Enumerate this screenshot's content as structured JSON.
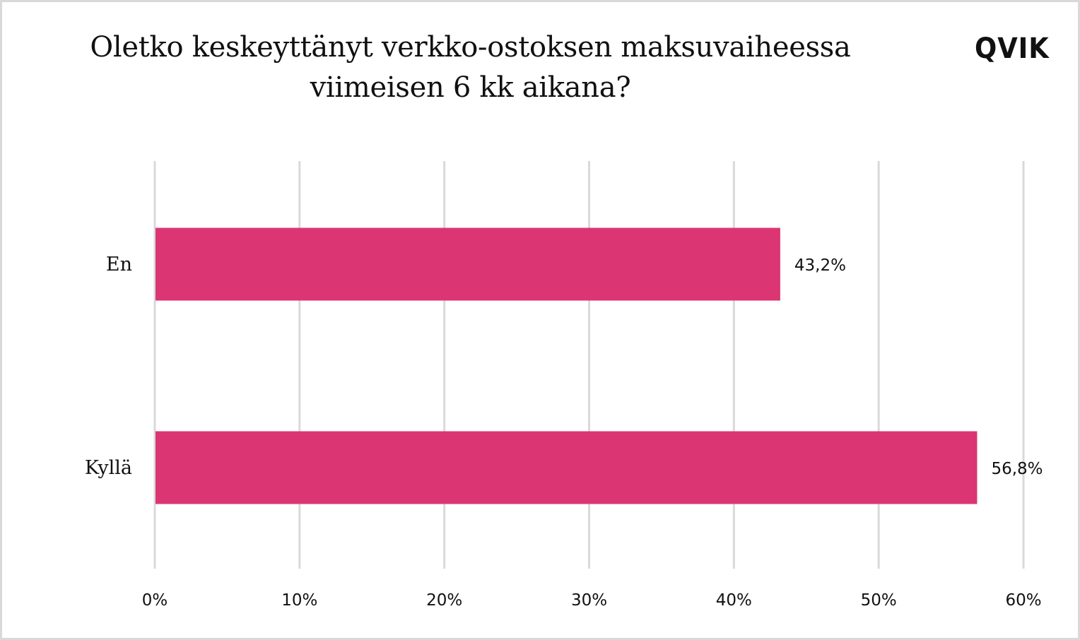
{
  "title_lines": [
    "Oletko keskeyttänyt verkko-ostoksen maksuvaiheessa",
    "viimeisen 6 kk aikana?"
  ],
  "logo": "QVIK",
  "colors": {
    "bar": "#dc3573",
    "grid": "#d9d9d9",
    "text": "#111111"
  },
  "chart_data": {
    "type": "bar",
    "orientation": "horizontal",
    "categories": [
      "En",
      "Kyllä"
    ],
    "values": [
      43.2,
      56.8
    ],
    "value_labels": [
      "43,2%",
      "56,8%"
    ],
    "xlim": [
      0,
      60
    ],
    "x_ticks": [
      0,
      10,
      20,
      30,
      40,
      50,
      60
    ],
    "x_tick_labels": [
      "0%",
      "10%",
      "20%",
      "30%",
      "40%",
      "50%",
      "60%"
    ],
    "grid": true,
    "legend": "none"
  }
}
